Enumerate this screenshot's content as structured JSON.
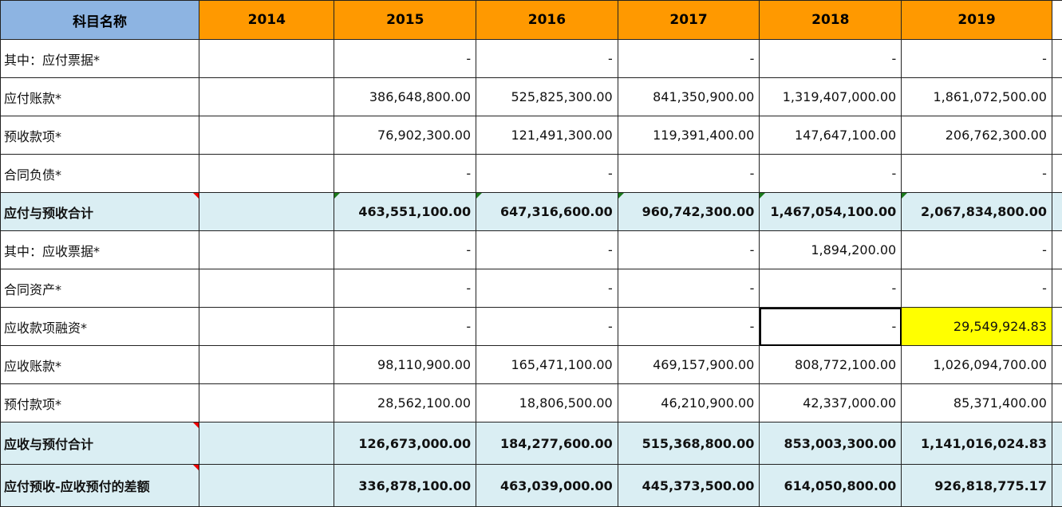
{
  "header": {
    "name": "科目名称",
    "years": [
      "2014",
      "2015",
      "2016",
      "2017",
      "2018",
      "2019"
    ]
  },
  "rows": [
    {
      "label": "其中：应付票据*",
      "values": [
        "",
        "-",
        "-",
        "-",
        "-",
        "-"
      ],
      "total": false
    },
    {
      "label": "应付账款*",
      "values": [
        "",
        "386,648,800.00",
        "525,825,300.00",
        "841,350,900.00",
        "1,319,407,000.00",
        "1,861,072,500.00"
      ],
      "total": false
    },
    {
      "label": "预收款项*",
      "values": [
        "",
        "76,902,300.00",
        "121,491,300.00",
        "119,391,400.00",
        "147,647,100.00",
        "206,762,300.00"
      ],
      "total": false
    },
    {
      "label": "合同负债*",
      "values": [
        "",
        "-",
        "-",
        "-",
        "-",
        "-"
      ],
      "total": false
    },
    {
      "label": "应付与预收合计",
      "values": [
        "",
        "463,551,100.00",
        "647,316,600.00",
        "960,742,300.00",
        "1,467,054,100.00",
        "2,067,834,800.00"
      ],
      "total": true
    },
    {
      "label": "其中：应收票据*",
      "values": [
        "",
        "-",
        "-",
        "-",
        "1,894,200.00",
        "-"
      ],
      "total": false
    },
    {
      "label": "合同资产*",
      "values": [
        "",
        "-",
        "-",
        "-",
        "-",
        "-"
      ],
      "total": false
    },
    {
      "label": "应收款项融资*",
      "values": [
        "",
        "-",
        "-",
        "-",
        "-",
        "29,549,924.83"
      ],
      "total": false
    },
    {
      "label": "应收账款*",
      "values": [
        "",
        "98,110,900.00",
        "165,471,100.00",
        "469,157,900.00",
        "808,772,100.00",
        "1,026,094,700.00"
      ],
      "total": false
    },
    {
      "label": "预付款项*",
      "values": [
        "",
        "28,562,100.00",
        "18,806,500.00",
        "46,210,900.00",
        "42,337,000.00",
        "85,371,400.00"
      ],
      "total": false
    },
    {
      "label": "应收与预付合计",
      "values": [
        "",
        "126,673,000.00",
        "184,277,600.00",
        "515,368,800.00",
        "853,003,300.00",
        "1,141,016,024.83"
      ],
      "total": true
    },
    {
      "label": "应付预收-应收预付的差额",
      "values": [
        "",
        "336,878,100.00",
        "463,039,000.00",
        "445,373,500.00",
        "614,050,800.00",
        "926,818,775.17"
      ],
      "total": true
    }
  ],
  "colors": {
    "header_name": "#8db4e2",
    "header_year": "#ff9900",
    "total_row": "#daeef3",
    "highlight": "#ffff00"
  }
}
